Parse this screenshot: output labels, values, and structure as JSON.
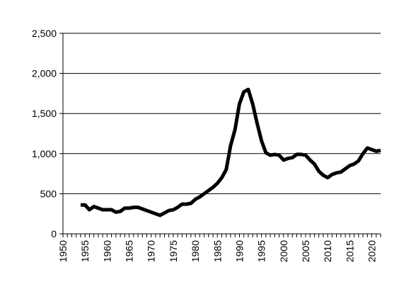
{
  "chart_data": {
    "type": "line",
    "title": "",
    "xlabel": "",
    "ylabel": "",
    "xlim": [
      1950,
      2022
    ],
    "ylim": [
      0,
      2500
    ],
    "grid": "horizontal",
    "legend": "none",
    "line_color": "#000000",
    "x_ticks": [
      "1950",
      "1955",
      "1960",
      "1965",
      "1970",
      "1975",
      "1980",
      "1985",
      "1990",
      "1995",
      "2000",
      "2005",
      "2010",
      "2015",
      "2020"
    ],
    "y_ticks": [
      "0",
      "500",
      "1,000",
      "1,500",
      "2,000",
      "2,500"
    ],
    "x_tick_values": [
      1950,
      1955,
      1960,
      1965,
      1970,
      1975,
      1980,
      1985,
      1990,
      1995,
      2000,
      2005,
      2010,
      2015,
      2020
    ],
    "y_tick_values": [
      0,
      500,
      1000,
      1500,
      2000,
      2500
    ],
    "x": [
      1954,
      1955,
      1956,
      1957,
      1958,
      1959,
      1960,
      1961,
      1962,
      1963,
      1964,
      1965,
      1966,
      1967,
      1968,
      1969,
      1970,
      1971,
      1972,
      1973,
      1974,
      1975,
      1976,
      1977,
      1978,
      1979,
      1980,
      1981,
      1982,
      1983,
      1984,
      1985,
      1986,
      1987,
      1988,
      1989,
      1990,
      1991,
      1992,
      1993,
      1994,
      1995,
      1996,
      1997,
      1998,
      1999,
      2000,
      2001,
      2002,
      2003,
      2004,
      2005,
      2006,
      2007,
      2008,
      2009,
      2010,
      2011,
      2012,
      2013,
      2014,
      2015,
      2016,
      2017,
      2018,
      2019,
      2020,
      2021,
      2022
    ],
    "series": [
      {
        "values": [
          360,
          360,
          300,
          340,
          320,
          300,
          300,
          300,
          270,
          280,
          320,
          320,
          330,
          330,
          310,
          290,
          270,
          250,
          230,
          260,
          290,
          300,
          330,
          370,
          370,
          380,
          430,
          460,
          500,
          540,
          580,
          630,
          700,
          800,
          1100,
          1300,
          1620,
          1770,
          1800,
          1620,
          1380,
          1160,
          1010,
          980,
          990,
          980,
          920,
          940,
          950,
          990,
          990,
          980,
          920,
          870,
          780,
          730,
          700,
          740,
          760,
          770,
          810,
          850,
          870,
          910,
          1000,
          1070,
          1050,
          1030,
          1040
        ]
      }
    ]
  }
}
